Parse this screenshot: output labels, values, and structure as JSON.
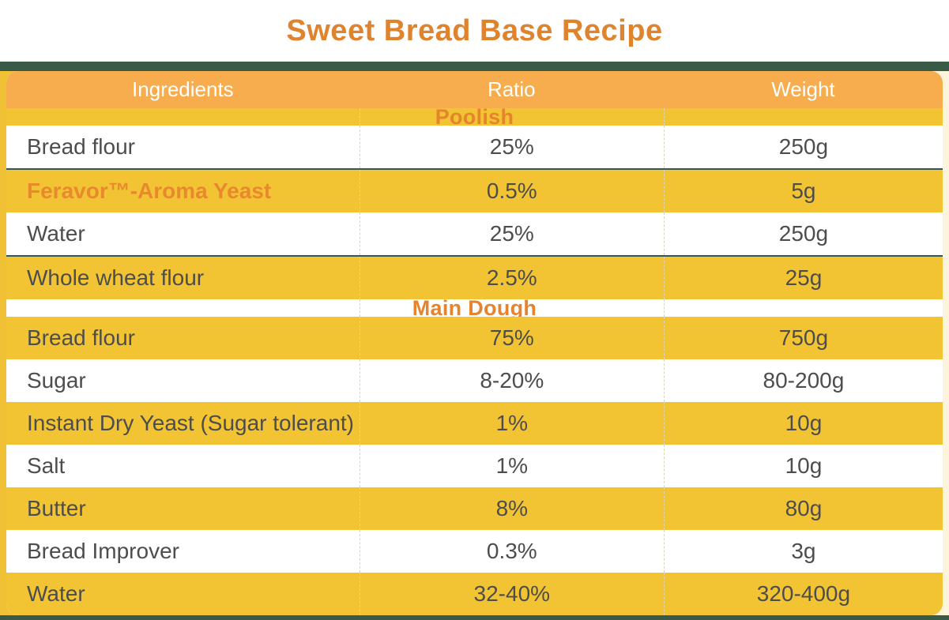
{
  "page": {
    "title": "Sweet Bread Base Recipe"
  },
  "colors": {
    "accent_orange": "#E5832E",
    "row_yellow": "#F2C433",
    "header_amber": "#F7AC4D",
    "page_green": "#3A5A48",
    "text_dark": "#4D4D4D",
    "edge_cream": "#FCF4DC"
  },
  "table": {
    "columns": [
      "Ingredients",
      "Ratio",
      "Weight"
    ],
    "sections": [
      {
        "label": "Poolish"
      },
      {
        "label": "Main Dough"
      }
    ],
    "rows": [
      {
        "type": "section",
        "label": "Poolish"
      },
      {
        "type": "item",
        "ingredient": "Bread flour",
        "ratio": "25%",
        "weight": "250g"
      },
      {
        "type": "item",
        "ingredient": "Feravor™-Aroma Yeast",
        "ratio": "0.5%",
        "weight": "5g"
      },
      {
        "type": "item",
        "ingredient": "Water",
        "ratio": "25%",
        "weight": "250g"
      },
      {
        "type": "item",
        "ingredient": "Whole wheat flour",
        "ratio": "2.5%",
        "weight": "25g"
      },
      {
        "type": "section",
        "label": "Main Dough"
      },
      {
        "type": "item",
        "ingredient": "Bread flour",
        "ratio": "75%",
        "weight": "750g"
      },
      {
        "type": "item",
        "ingredient": "Sugar",
        "ratio": "8-20%",
        "weight": "80-200g"
      },
      {
        "type": "item",
        "ingredient": "Instant Dry Yeast (Sugar tolerant)",
        "ratio": "1%",
        "weight": "10g"
      },
      {
        "type": "item",
        "ingredient": "Salt",
        "ratio": "1%",
        "weight": "10g"
      },
      {
        "type": "item",
        "ingredient": "Butter",
        "ratio": "8%",
        "weight": "80g"
      },
      {
        "type": "item",
        "ingredient": "Bread Improver",
        "ratio": "0.3%",
        "weight": "3g"
      },
      {
        "type": "item",
        "ingredient": "Water",
        "ratio": "32-40%",
        "weight": "320-400g"
      }
    ]
  }
}
